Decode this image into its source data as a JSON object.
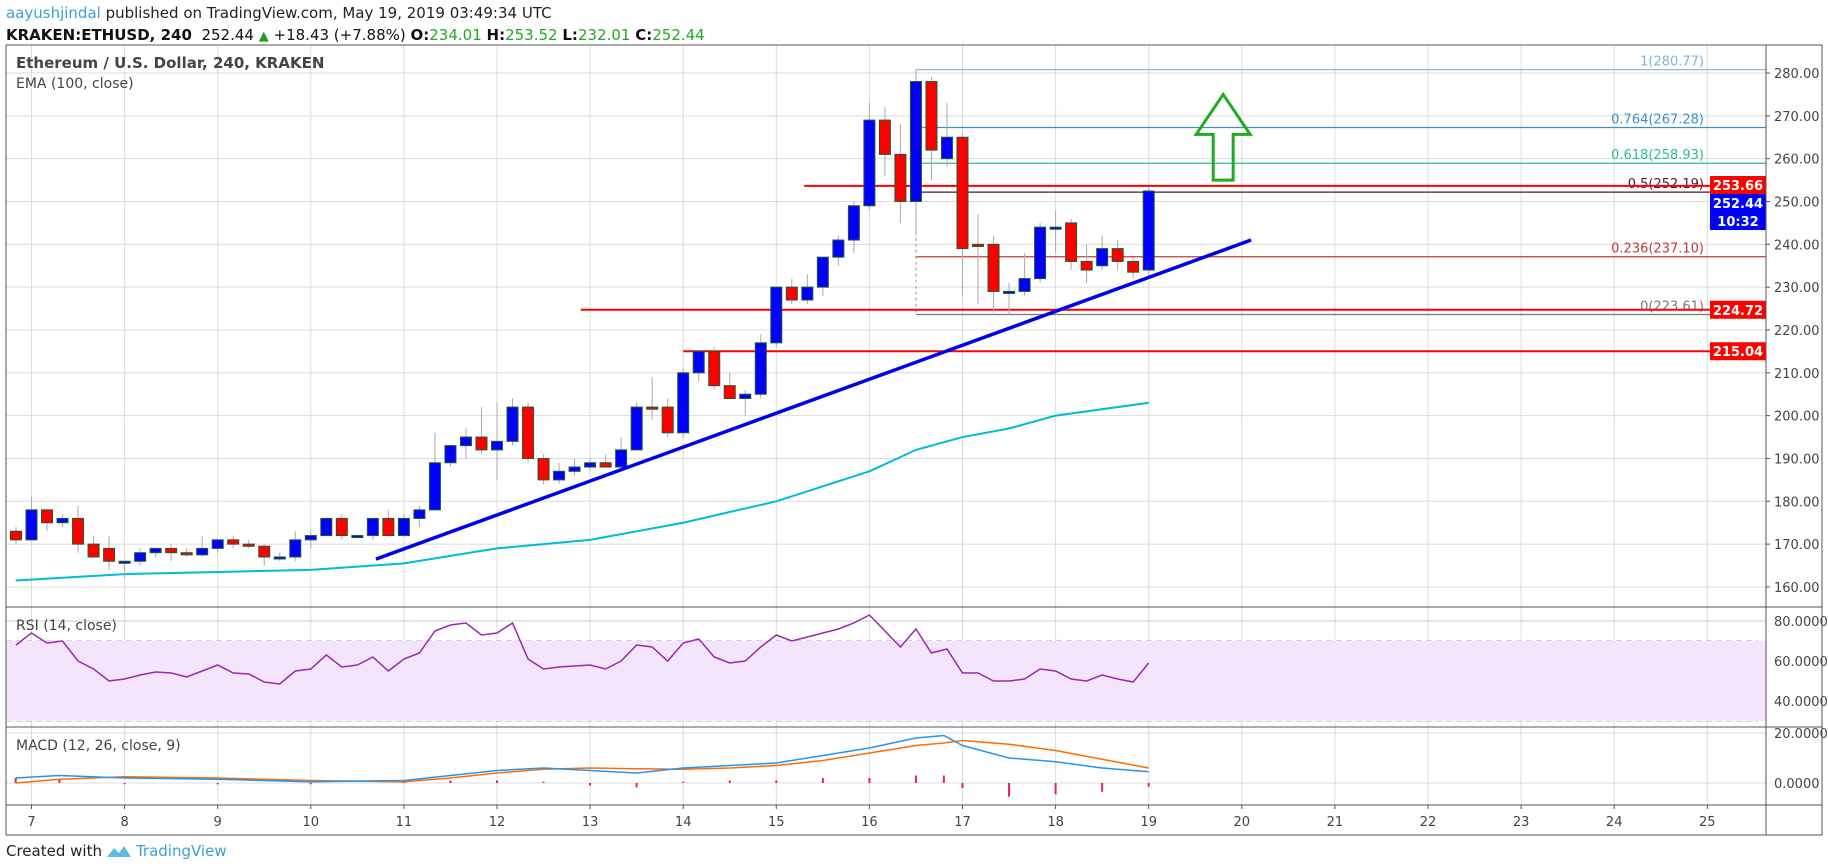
{
  "header": {
    "author": "aayushjindal",
    "published": "published on TradingView.com, May 19, 2019 03:49:34 UTC",
    "symbol": "KRAKEN:ETHUSD, 240",
    "last": "252.44",
    "change": "+18.43 (+7.88%)",
    "o_label": "O:",
    "o": "234.01",
    "h_label": "H:",
    "h": "253.52",
    "l_label": "L:",
    "l": "232.01",
    "c_label": "C:",
    "c": "252.44"
  },
  "legend": {
    "title": "Ethereum / U.S. Dollar, 240, KRAKEN",
    "ema": "EMA (100, close)",
    "rsi": "RSI (14, close)",
    "macd": "MACD (12, 26, close, 9)"
  },
  "footer": {
    "created": "Created with",
    "brand": "TradingView"
  },
  "colors": {
    "up": "#0000ff",
    "down": "#ff0000",
    "ema": "#00bcd4",
    "trendline": "#0000ee",
    "hline": "#ff0000",
    "rsi": "#9c27b0",
    "rsi_band": "#f3e5fc",
    "macd": "#2196f3",
    "signal": "#ff6d00",
    "hist": "#e91e63",
    "arrow": "#22aa22"
  },
  "chart_data": [
    {
      "type": "candlestick",
      "title": "Ethereum / U.S. Dollar, 240, KRAKEN",
      "x_ticks": [
        "7",
        "8",
        "9",
        "10",
        "11",
        "12",
        "13",
        "14",
        "15",
        "16",
        "17",
        "18",
        "19",
        "20",
        "21",
        "22",
        "23",
        "24",
        "25"
      ],
      "y_ticks": [
        "160.00",
        "170.00",
        "180.00",
        "190.00",
        "200.00",
        "210.00",
        "220.00",
        "230.00",
        "240.00",
        "250.00",
        "260.00",
        "270.00",
        "280.00"
      ],
      "ylim": [
        154,
        284
      ],
      "grid": true,
      "first_candle_day": 6.8333,
      "candle_hours": 4,
      "ohlc": [
        [
          173,
          174,
          170,
          171
        ],
        [
          171,
          181,
          171,
          178
        ],
        [
          178,
          178,
          173,
          175
        ],
        [
          175,
          177,
          174,
          176
        ],
        [
          176,
          179,
          168,
          170
        ],
        [
          170,
          172,
          167,
          167
        ],
        [
          169,
          172,
          164,
          166
        ],
        [
          166,
          166,
          162,
          166
        ],
        [
          166,
          169,
          165,
          168
        ],
        [
          168,
          169,
          167,
          169
        ],
        [
          169,
          170,
          166,
          168
        ],
        [
          168,
          169,
          167,
          167.5
        ],
        [
          167.5,
          172,
          167,
          169
        ],
        [
          169,
          171,
          168,
          171
        ],
        [
          171,
          172,
          169,
          170
        ],
        [
          170,
          171,
          169,
          169.5
        ],
        [
          169.5,
          170,
          165,
          167
        ],
        [
          167,
          168,
          166,
          167
        ],
        [
          167,
          173,
          166,
          171
        ],
        [
          171,
          173,
          169,
          172
        ],
        [
          172,
          176,
          172,
          176
        ],
        [
          176,
          177,
          171,
          172
        ],
        [
          172,
          172,
          172,
          172
        ],
        [
          172,
          176,
          171,
          176
        ],
        [
          176,
          178,
          173,
          172
        ],
        [
          172,
          177,
          172,
          176
        ],
        [
          176,
          179,
          174,
          178
        ],
        [
          178,
          196,
          178,
          189
        ],
        [
          189,
          193,
          188,
          193
        ],
        [
          193,
          197,
          190,
          195
        ],
        [
          195,
          202,
          191,
          192
        ],
        [
          192,
          203,
          185,
          194
        ],
        [
          194,
          204,
          193,
          202
        ],
        [
          202,
          203,
          189,
          190
        ],
        [
          190,
          191,
          184,
          185
        ],
        [
          185,
          189,
          184,
          187
        ],
        [
          187,
          190,
          186,
          188
        ],
        [
          188,
          190,
          187,
          189
        ],
        [
          189,
          191,
          188,
          188
        ],
        [
          188,
          195,
          187,
          192
        ],
        [
          192,
          203,
          192,
          202
        ],
        [
          202,
          209,
          199,
          201.5
        ],
        [
          202,
          204,
          195,
          196
        ],
        [
          196,
          211,
          195,
          210
        ],
        [
          210,
          215,
          208,
          215
        ],
        [
          215,
          216,
          206,
          207
        ],
        [
          207,
          210,
          204,
          204
        ],
        [
          204,
          206,
          200,
          205
        ],
        [
          205,
          219,
          204,
          217
        ],
        [
          217,
          230,
          216,
          230
        ],
        [
          230,
          232,
          226,
          227
        ],
        [
          227,
          233,
          226,
          230
        ],
        [
          230,
          237,
          228,
          237
        ],
        [
          237,
          242,
          235,
          241
        ],
        [
          241,
          250,
          238,
          249
        ],
        [
          249,
          273,
          248,
          269
        ],
        [
          269,
          272,
          256,
          261
        ],
        [
          261,
          268,
          245,
          250
        ],
        [
          250,
          280.77,
          242,
          278
        ],
        [
          278,
          279,
          255,
          262
        ],
        [
          260,
          273,
          258,
          265
        ],
        [
          265,
          266,
          228,
          239
        ],
        [
          240,
          247,
          226,
          239.5
        ],
        [
          240,
          242,
          224,
          229
        ],
        [
          229,
          231,
          223.61,
          229
        ],
        [
          229,
          238,
          228,
          232
        ],
        [
          232,
          245,
          231,
          244
        ],
        [
          244,
          248,
          238,
          244
        ],
        [
          245,
          246,
          234,
          236
        ],
        [
          236,
          240,
          231,
          234
        ],
        [
          235,
          242,
          234,
          239
        ],
        [
          239,
          241,
          234,
          236
        ],
        [
          236,
          237,
          232,
          233.5
        ],
        [
          234.01,
          253.52,
          232.01,
          252.44
        ]
      ],
      "ema100": {
        "days": [
          6.83,
          8,
          9,
          10,
          11,
          12,
          13,
          14,
          15,
          16,
          16.5,
          17,
          17.5,
          18,
          19
        ],
        "values": [
          161.5,
          163,
          163.5,
          164,
          165.5,
          169,
          171,
          175,
          180,
          187,
          192,
          195,
          197,
          200,
          203
        ]
      },
      "trendline": {
        "from": [
          10.7,
          166.5
        ],
        "to": [
          20.1,
          241
        ]
      },
      "horizontal_lines": [
        {
          "value": 253.66,
          "from_day": 15.3,
          "label": "253.66"
        },
        {
          "value": 224.72,
          "from_day": 12.9,
          "label": "224.72"
        },
        {
          "value": 215.04,
          "from_day": 14.0,
          "label": "215.04"
        }
      ],
      "fibonacci": {
        "from_day": 16.5,
        "levels": [
          {
            "label": "1(280.77)",
            "value": 280.77,
            "color": "#7fb3d9"
          },
          {
            "label": "0.764(267.28)",
            "value": 267.28,
            "color": "#3d8fc9"
          },
          {
            "label": "0.618(258.93)",
            "value": 258.93,
            "color": "#2bbd8e"
          },
          {
            "label": "0.5(252.19)",
            "value": 252.19,
            "color": "#4a1c2a"
          },
          {
            "label": "0.236(237.10)",
            "value": 237.1,
            "color": "#c83a3a"
          },
          {
            "label": "0(223.61)",
            "value": 223.61,
            "color": "#777777"
          }
        ]
      },
      "arrow": {
        "day": 19.8,
        "from": 255,
        "to": 275,
        "direction": "up"
      },
      "last_price_badge": "252.44",
      "countdown": "10:32"
    },
    {
      "type": "line",
      "title": "RSI (14, close)",
      "y_ticks": [
        "40.0000",
        "60.0000",
        "80.0000"
      ],
      "band": [
        30,
        70
      ],
      "values": [
        68,
        74,
        69,
        70,
        60,
        56,
        50,
        51,
        53,
        54.5,
        54,
        52,
        55,
        58,
        54,
        53.5,
        49.5,
        48.5,
        55,
        56,
        63,
        57,
        58,
        62,
        55,
        61,
        64,
        75,
        78,
        79,
        73,
        74,
        79,
        61,
        56,
        57,
        57.5,
        58,
        56,
        60,
        68,
        67,
        60,
        69,
        71,
        62,
        59,
        60,
        67,
        73,
        70,
        72,
        74,
        76,
        79,
        83,
        75,
        67,
        76,
        64,
        66,
        54,
        54,
        50,
        50,
        51,
        56,
        55,
        51,
        50,
        53,
        51,
        49.5,
        59
      ]
    },
    {
      "type": "line",
      "title": "MACD (12, 26, close, 9)",
      "y_ticks": [
        "0.0000",
        "20.0000"
      ],
      "days": [
        6.83,
        7.3,
        8,
        9,
        10,
        11,
        11.5,
        12,
        12.5,
        13,
        13.5,
        14,
        14.5,
        15,
        15.5,
        16,
        16.5,
        16.8,
        17,
        17.5,
        18,
        18.5,
        19
      ],
      "macd": [
        2,
        3,
        2,
        1.5,
        0.5,
        1,
        3,
        5,
        6,
        5,
        4,
        6,
        7,
        8,
        11,
        14,
        18,
        19,
        15,
        10,
        8.5,
        6,
        4.5
      ],
      "signal": [
        0,
        1.5,
        2.5,
        2,
        1,
        0.5,
        2,
        4,
        5.5,
        6,
        5.7,
        5.5,
        6,
        7,
        9,
        12,
        15,
        16,
        17,
        15.5,
        13,
        9.5,
        6
      ]
    }
  ]
}
